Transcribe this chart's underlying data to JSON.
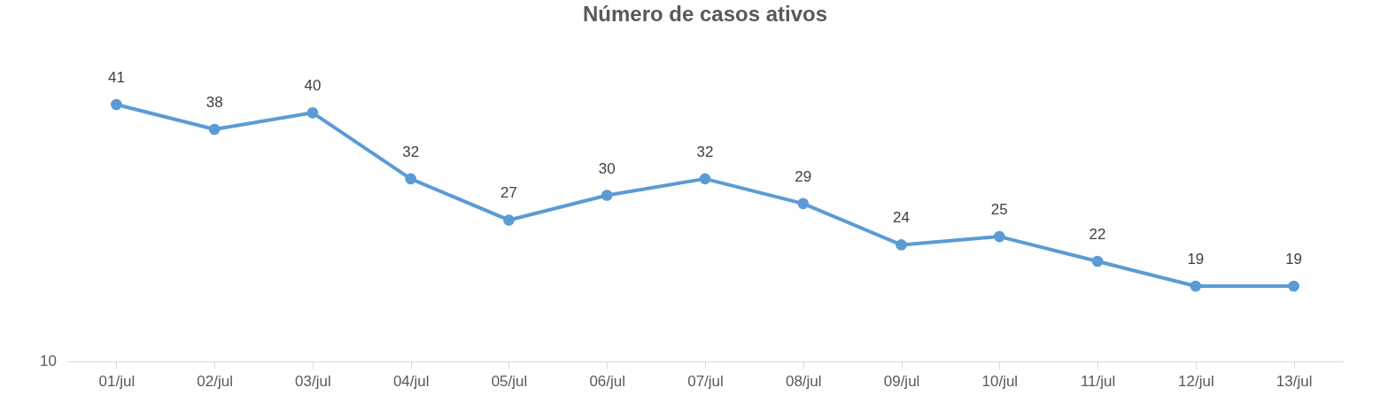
{
  "chart_data": {
    "type": "line",
    "title": "Número de casos ativos",
    "categories": [
      "01/jul",
      "02/jul",
      "03/jul",
      "04/jul",
      "05/jul",
      "06/jul",
      "07/jul",
      "08/jul",
      "09/jul",
      "10/jul",
      "11/jul",
      "12/jul",
      "13/jul"
    ],
    "series": [
      {
        "color": "#5b9bd5",
        "values": [
          41,
          38,
          40,
          32,
          27,
          30,
          32,
          29,
          24,
          25,
          22,
          19,
          19
        ]
      }
    ],
    "annotations": [
      "10"
    ],
    "marker": "circle",
    "line_style": "solid",
    "data_labels": true
  }
}
